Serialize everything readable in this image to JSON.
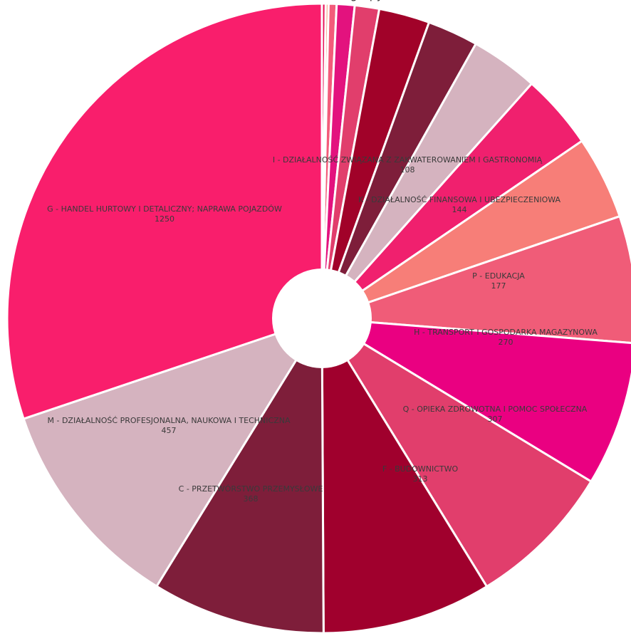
{
  "chart_data": {
    "type": "pie",
    "donut": true,
    "top_caption": "grupy",
    "slices": [
      {
        "label": "",
        "value": 8,
        "color": "#e8175d"
      },
      {
        "label": "",
        "value": 6,
        "color": "#f4845f"
      },
      {
        "label": "",
        "value": 17,
        "color": "#f35b7a"
      },
      {
        "label": "",
        "value": 38,
        "color": "#e3127e"
      },
      {
        "label": "",
        "value": 52,
        "color": "#e13e6c"
      },
      {
        "label": "I - DZIAŁALNOŚĆ ZWIĄZANA Z ZAKWATEROWANIEM I GASTRONOMIĄ",
        "value": 108,
        "color": "#a10229"
      },
      {
        "label": "",
        "value": 108,
        "color": "#7e1e3a"
      },
      {
        "label": "K - DZIAŁALNOŚĆ FINANSOWA I UBEZPIECZENIOWA",
        "value": 144,
        "color": "#d5b3bf"
      },
      {
        "label": "",
        "value": 160,
        "color": "#f0206e"
      },
      {
        "label": "P - EDUKACJA",
        "value": 177,
        "color": "#f77e78"
      },
      {
        "label": "H - TRANSPORT I GOSPODARKA MAGAZYNOWA",
        "value": 270,
        "color": "#f05c78"
      },
      {
        "label": "Q - OPIEKA ZDROWOTNA I POMOC SPOŁECZNA",
        "value": 307,
        "color": "#ea0081"
      },
      {
        "label": "F - BUDOWNICTWO",
        "value": 313,
        "color": "#e13e6c"
      },
      {
        "label": "",
        "value": 360,
        "color": "#a0002d"
      },
      {
        "label": "C - PRZETWÓRSTWO PRZEMYSŁOWE",
        "value": 368,
        "color": "#7e1e3a"
      },
      {
        "label": "M - DZIAŁALNOŚĆ PROFESJONALNA, NAUKOWA I TECHNICZNA",
        "value": 457,
        "color": "#d5b3bf"
      },
      {
        "label": "G - HANDEL HURTOWY I DETALICZNY; NAPRAWA POJAZDÓW",
        "value": 1250,
        "color": "#f91e6c"
      }
    ],
    "legend": "none"
  }
}
